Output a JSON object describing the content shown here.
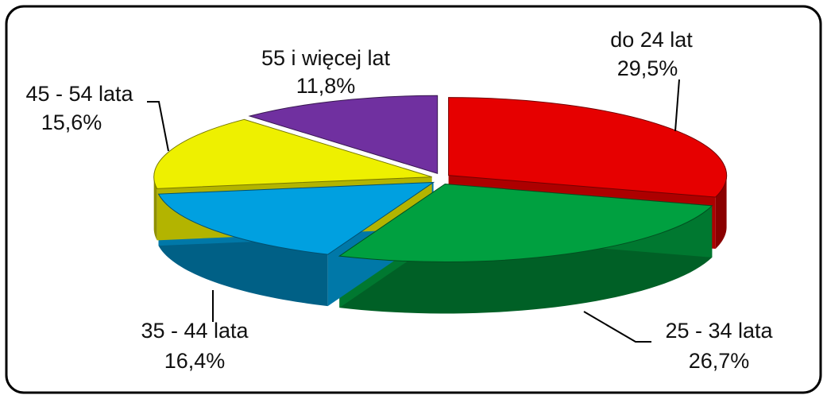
{
  "chart_data": {
    "type": "pie",
    "categories": [
      "do 24 lat",
      "25 - 34 lata",
      "35 - 44 lata",
      "45 - 54 lata",
      "55 i więcej lat"
    ],
    "values": [
      29.5,
      26.7,
      16.4,
      15.6,
      11.8
    ],
    "value_labels": [
      "29,5%",
      "26,7%",
      "16,4%",
      "15,6%",
      "11,8%"
    ],
    "colors": [
      "#e60000",
      "#00a040",
      "#00a0e0",
      "#eef000",
      "#7030a0"
    ]
  }
}
